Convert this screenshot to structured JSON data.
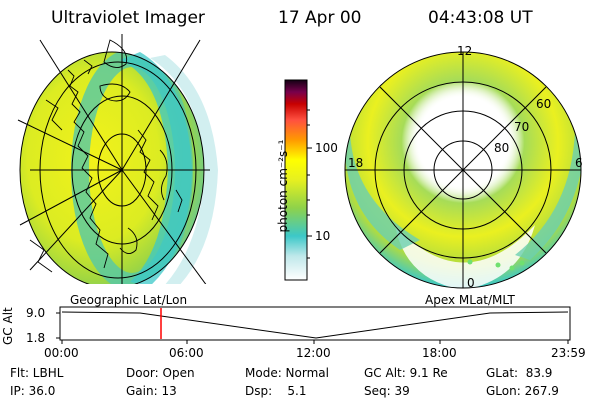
{
  "header": {
    "instrument": "Ultraviolet Imager",
    "date": "17 Apr 00",
    "time": "04:43:08 UT"
  },
  "colorbar": {
    "unit_label": "photon cm⁻²s⁻¹",
    "ticks": [
      "100",
      "10"
    ],
    "scale": "log",
    "colors": [
      "#ffffff",
      "#3cc8c8",
      "#8ed24a",
      "#ffff00",
      "#ff9a00",
      "#c80000",
      "#140014"
    ]
  },
  "polar_plot": {
    "mlt_labels": {
      "top": "12",
      "left": "18",
      "right": "6",
      "bottom": "0"
    },
    "lat_labels": [
      "60",
      "70",
      "80"
    ]
  },
  "projections": {
    "left": "Geographic Lat/Lon",
    "right": "Apex MLat/MLT"
  },
  "timeline": {
    "y_axis_label": "GC Alt",
    "y_ticks": [
      "9.0",
      "1.8"
    ],
    "x_ticks": [
      "00:00",
      "06:00",
      "12:00",
      "18:00",
      "23:59"
    ],
    "current_marker": "04:43",
    "marker_color": "#ff0000"
  },
  "info": {
    "flt": "Flt: LBHL",
    "ip": "IP: 36.0",
    "door": "Door: Open",
    "gain": "Gain: 13",
    "mode": "Mode: Normal",
    "dsp": "Dsp:    5.1",
    "gcalt": "GC Alt: 9.1 Re",
    "seq": "Seq: 39",
    "glat": "GLat:  83.9",
    "glon": "GLon: 267.9"
  }
}
